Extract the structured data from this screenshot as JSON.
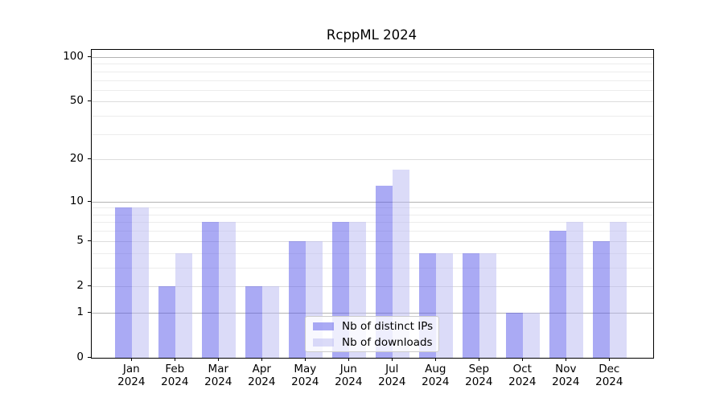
{
  "chart_data": {
    "type": "bar",
    "title": "RcppML 2024",
    "categories": [
      "Jan",
      "Feb",
      "Mar",
      "Apr",
      "May",
      "Jun",
      "Jul",
      "Aug",
      "Sep",
      "Oct",
      "Nov",
      "Dec"
    ],
    "year_label": "2024",
    "series": [
      {
        "name": "Nb of distinct IPs",
        "color": "rgba(86,86,233,0.5)",
        "values": [
          9,
          2,
          7,
          2,
          5,
          7,
          13,
          4,
          4,
          1,
          6,
          5
        ]
      },
      {
        "name": "Nb of downloads",
        "color": "rgba(183,183,242,0.5)",
        "values": [
          9,
          4,
          7,
          2,
          5,
          7,
          17,
          4,
          4,
          1,
          7,
          7
        ]
      }
    ],
    "yscale": "log1p",
    "ylim": [
      0,
      112
    ],
    "yticks": [
      0,
      1,
      2,
      5,
      10,
      20,
      50,
      100
    ],
    "minor_gridlines": [
      3,
      4,
      6,
      7,
      8,
      9,
      30,
      40,
      60,
      70,
      80,
      90
    ],
    "emphasized_gridlines": [
      1,
      10,
      100
    ],
    "grid": "on",
    "legend_position": "lower-center-inside",
    "colors": {
      "gridline_emphasis": "#b3b3b3",
      "gridline_major": "#dddddd",
      "gridline_minor": "#ececec",
      "spine": "#000000"
    }
  }
}
